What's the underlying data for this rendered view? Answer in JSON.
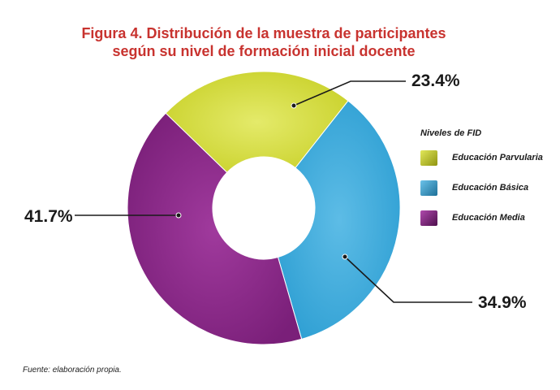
{
  "title_lines": [
    "Figura 4. Distribución de la muestra de participantes",
    "según su nivel de formación inicial docente"
  ],
  "chart_data": {
    "type": "pie",
    "donut": true,
    "title": "Figura 4. Distribución de la muestra de participantes según su nivel de formación inicial docente",
    "legend_title": "Niveles de FID",
    "legend_position": "right",
    "categories": [
      "Educación Parvularia",
      "Educación Básica",
      "Educación Media"
    ],
    "values": [
      23.4,
      34.9,
      41.7
    ],
    "labels": [
      "23.4%",
      "34.9%",
      "41.7%"
    ],
    "colors": [
      "#d7de3e",
      "#3eaadb",
      "#8a2a88"
    ]
  },
  "source": "Fuente: elaboración propia."
}
